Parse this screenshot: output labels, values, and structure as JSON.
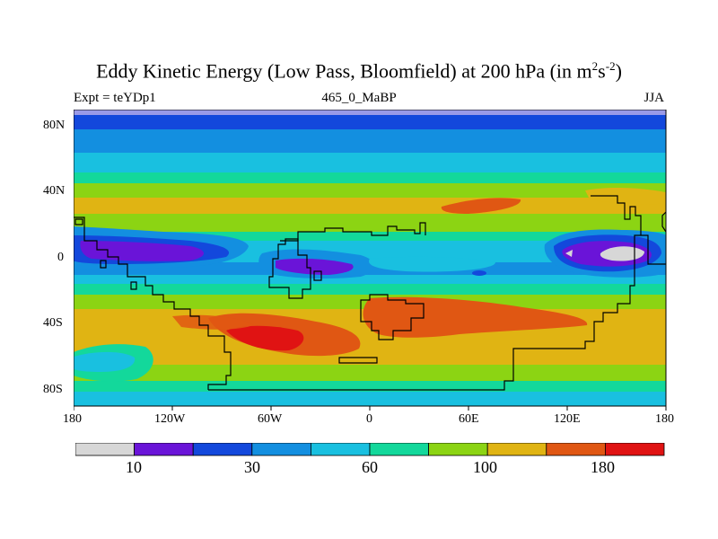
{
  "title": {
    "prefix": "Eddy Kinetic Energy (Low Pass, Bloomfield) at 200 hPa (in m",
    "sup1": "2",
    "mid": "s",
    "sup2": "-2",
    "suffix": ")"
  },
  "subtitle_left": "Expt = teYDp1",
  "subtitle_center": "465_0_MaBP",
  "subtitle_right": "JJA",
  "map": {
    "y_ticks": [
      "80N",
      "40N",
      "0",
      "40S",
      "80S"
    ],
    "x_ticks": [
      "180",
      "120W",
      "60W",
      "0",
      "60E",
      "120E",
      "180"
    ]
  },
  "colorbar": {
    "colors": [
      "#d7d7d7",
      "#6a14d8",
      "#1348dc",
      "#138fe0",
      "#19c0e0",
      "#13d89b",
      "#8cd413",
      "#e0b413",
      "#e05713",
      "#e01313"
    ],
    "labels": [
      "10",
      "30",
      "60",
      "100",
      "180"
    ]
  },
  "colors": {
    "lavender": "#9a9ae8",
    "purple": "#6a14d8",
    "blue": "#1348dc",
    "mid_blue": "#138fe0",
    "light_blue": "#19c0e0",
    "cyan_green": "#13d89b",
    "green": "#8cd413",
    "yellow": "#e0b413",
    "orange": "#e05713",
    "red": "#e01313",
    "gray": "#d7d7d7"
  }
}
